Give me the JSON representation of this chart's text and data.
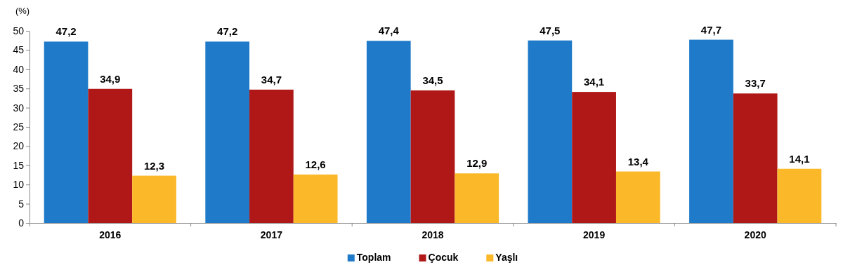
{
  "chart_data": {
    "type": "bar",
    "ylabel": "(%)",
    "categories": [
      "2016",
      "2017",
      "2018",
      "2019",
      "2020"
    ],
    "series": [
      {
        "name": "Toplam",
        "color": "#1f7bc9",
        "values": [
          47.2,
          47.2,
          47.4,
          47.5,
          47.7
        ],
        "value_labels": [
          "47,2",
          "47,2",
          "47,4",
          "47,5",
          "47,7"
        ]
      },
      {
        "name": "Çocuk",
        "color": "#b01818",
        "values": [
          34.9,
          34.7,
          34.5,
          34.1,
          33.7
        ],
        "value_labels": [
          "34,9",
          "34,7",
          "34,5",
          "34,1",
          "33,7"
        ]
      },
      {
        "name": "Yaşlı",
        "color": "#fbb829",
        "values": [
          12.3,
          12.6,
          12.9,
          13.4,
          14.1
        ],
        "value_labels": [
          "12,3",
          "12,6",
          "12,9",
          "13,4",
          "14,1"
        ]
      }
    ],
    "ylim": [
      0,
      50
    ],
    "yticks": [
      0,
      5,
      10,
      15,
      20,
      25,
      30,
      35,
      40,
      45,
      50
    ],
    "grid": false,
    "legend": "bottom"
  }
}
